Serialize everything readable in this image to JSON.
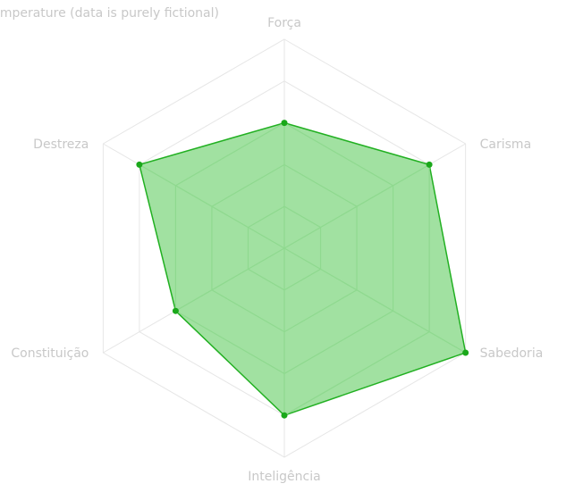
{
  "chart_data": {
    "type": "radar",
    "title": "Temperature (data is purely fictional)",
    "axes": [
      "Força",
      "Carisma",
      "Sabedoria",
      "Inteligência",
      "Constituição",
      "Destreza"
    ],
    "series": [
      {
        "values": [
          3,
          4,
          5,
          4,
          3,
          4
        ]
      }
    ],
    "range": [
      0,
      5
    ],
    "levels": 5,
    "grid": true,
    "colors": {
      "fill": "#8ad98a",
      "stroke": "#22b022",
      "point": "#1aa81a",
      "inner_grid": "#8fd98f",
      "outer_grid": "#e6e6e6",
      "label": "#c8c8c8"
    }
  }
}
